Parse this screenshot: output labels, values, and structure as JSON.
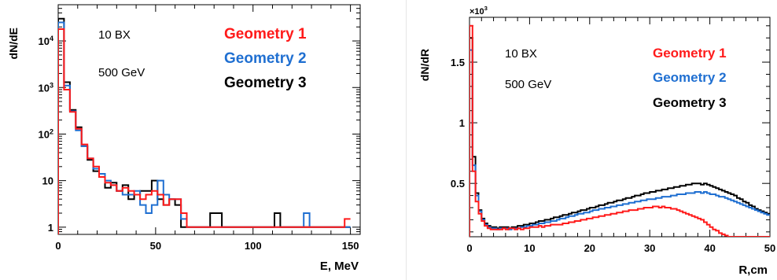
{
  "chart_data": [
    {
      "type": "step",
      "ylabel": "dN/dE",
      "xlabel": "E, MeV",
      "xlim": [
        0,
        155
      ],
      "ylim": [
        0.7,
        60000
      ],
      "yscale": "log",
      "xticks": [
        0,
        50,
        100,
        150
      ],
      "xtick_labels": [
        "0",
        "50",
        "100",
        "150"
      ],
      "yticks": [
        1,
        10,
        100,
        1000,
        10000
      ],
      "ytick_labels": [
        "1",
        "10",
        "10^2",
        "10^3",
        "10^4"
      ],
      "bin_edges": [
        0,
        3,
        6,
        9,
        12,
        15,
        18,
        21,
        24,
        27,
        30,
        33,
        36,
        39,
        42,
        45,
        48,
        51,
        54,
        57,
        60,
        63,
        66,
        69,
        72,
        75,
        78,
        81,
        84,
        87,
        90,
        93,
        96,
        99,
        102,
        105,
        108,
        111,
        114,
        117,
        120,
        123,
        126,
        129,
        132,
        135,
        138,
        141,
        144,
        147,
        150
      ],
      "text": [
        "10 BX",
        "500 GeV"
      ],
      "series": [
        {
          "name": "Geometry 1",
          "color": "#ff1a1a",
          "values": [
            18000,
            900,
            300,
            130,
            60,
            30,
            20,
            12,
            9,
            8,
            6,
            7,
            6,
            5,
            4,
            5,
            6,
            5,
            3,
            4,
            4,
            2,
            1,
            1,
            1,
            1,
            1,
            1,
            1,
            1,
            1,
            1,
            1,
            1,
            1,
            1,
            1,
            1,
            1,
            1,
            1,
            1,
            1,
            1,
            1,
            1,
            1,
            1,
            1,
            1.5
          ]
        },
        {
          "name": "Geometry 2",
          "color": "#1f6fd1",
          "values": [
            25000,
            1100,
            310,
            120,
            55,
            30,
            18,
            14,
            10,
            8,
            6,
            5,
            5,
            6,
            3,
            2,
            3,
            10,
            5,
            4,
            4,
            1.5,
            1,
            1,
            1,
            1,
            1,
            1,
            1,
            1,
            1,
            1,
            1,
            1,
            1,
            1,
            1,
            1,
            1,
            1,
            1,
            1,
            2,
            1,
            1,
            1,
            1,
            1,
            1,
            1
          ]
        },
        {
          "name": "Geometry 3",
          "color": "#000000",
          "values": [
            30000,
            1300,
            330,
            140,
            55,
            28,
            16,
            12,
            7,
            9,
            6,
            8,
            4,
            5,
            6,
            6,
            10,
            4,
            3,
            4,
            3,
            1,
            1,
            1,
            1,
            1,
            2,
            2,
            1,
            1,
            1,
            1,
            1,
            1,
            1,
            1,
            1,
            2,
            1,
            1,
            1,
            1,
            1,
            1,
            1,
            1,
            1,
            1,
            1,
            1
          ]
        }
      ]
    },
    {
      "type": "step",
      "ylabel": "dN/dR",
      "xlabel": "R,cm",
      "y_multiplier": "×10^3",
      "xlim": [
        0,
        50
      ],
      "ylim": [
        0.06,
        1.87
      ],
      "xticks": [
        0,
        10,
        20,
        30,
        40,
        50
      ],
      "xtick_labels": [
        "0",
        "10",
        "20",
        "30",
        "40",
        "50"
      ],
      "yticks": [
        0.5,
        1,
        1.5
      ],
      "ytick_labels": [
        "0.5",
        "1",
        "1.5"
      ],
      "bin_start": 0,
      "bin_width": 0.5,
      "text": [
        "10 BX",
        "500 GeV"
      ],
      "series": [
        {
          "name": "Geometry 1",
          "color": "#ff1a1a",
          "values": [
            1.8,
            0.6,
            0.35,
            0.25,
            0.19,
            0.15,
            0.13,
            0.12,
            0.12,
            0.12,
            0.12,
            0.13,
            0.12,
            0.13,
            0.13,
            0.12,
            0.13,
            0.12,
            0.13,
            0.13,
            0.14,
            0.14,
            0.14,
            0.15,
            0.14,
            0.15,
            0.15,
            0.16,
            0.16,
            0.16,
            0.16,
            0.17,
            0.17,
            0.18,
            0.18,
            0.19,
            0.19,
            0.2,
            0.2,
            0.21,
            0.21,
            0.22,
            0.22,
            0.23,
            0.23,
            0.24,
            0.24,
            0.25,
            0.25,
            0.26,
            0.26,
            0.27,
            0.27,
            0.28,
            0.28,
            0.28,
            0.29,
            0.29,
            0.3,
            0.3,
            0.3,
            0.31,
            0.31,
            0.3,
            0.31,
            0.3,
            0.3,
            0.29,
            0.29,
            0.28,
            0.27,
            0.26,
            0.25,
            0.24,
            0.23,
            0.22,
            0.21,
            0.2,
            0.18,
            0.16,
            0.14,
            0.12,
            0.11,
            0.09,
            0.08,
            0.07,
            0.06,
            0.06,
            0.06,
            0.06,
            0.06,
            0.06,
            0.06,
            0.06,
            0.06,
            0.06,
            0.06,
            0.06,
            0.06,
            0.06
          ]
        },
        {
          "name": "Geometry 2",
          "color": "#1f6fd1",
          "values": [
            1.6,
            0.65,
            0.4,
            0.27,
            0.2,
            0.16,
            0.14,
            0.13,
            0.13,
            0.12,
            0.13,
            0.13,
            0.13,
            0.12,
            0.13,
            0.13,
            0.13,
            0.14,
            0.14,
            0.15,
            0.15,
            0.16,
            0.16,
            0.17,
            0.17,
            0.18,
            0.18,
            0.19,
            0.19,
            0.2,
            0.21,
            0.21,
            0.22,
            0.23,
            0.23,
            0.24,
            0.25,
            0.25,
            0.26,
            0.26,
            0.27,
            0.28,
            0.28,
            0.29,
            0.29,
            0.3,
            0.3,
            0.31,
            0.31,
            0.32,
            0.32,
            0.33,
            0.33,
            0.34,
            0.34,
            0.35,
            0.35,
            0.36,
            0.36,
            0.37,
            0.37,
            0.37,
            0.38,
            0.38,
            0.39,
            0.39,
            0.39,
            0.4,
            0.4,
            0.41,
            0.41,
            0.41,
            0.42,
            0.42,
            0.42,
            0.43,
            0.43,
            0.42,
            0.43,
            0.42,
            0.41,
            0.41,
            0.4,
            0.39,
            0.39,
            0.38,
            0.37,
            0.36,
            0.35,
            0.34,
            0.33,
            0.32,
            0.31,
            0.3,
            0.29,
            0.28,
            0.27,
            0.26,
            0.25,
            0.24
          ]
        },
        {
          "name": "Geometry 3",
          "color": "#000000",
          "values": [
            1.7,
            0.72,
            0.42,
            0.28,
            0.21,
            0.17,
            0.15,
            0.14,
            0.14,
            0.13,
            0.14,
            0.14,
            0.14,
            0.13,
            0.14,
            0.14,
            0.15,
            0.15,
            0.16,
            0.16,
            0.17,
            0.17,
            0.18,
            0.19,
            0.19,
            0.2,
            0.2,
            0.21,
            0.22,
            0.22,
            0.23,
            0.24,
            0.24,
            0.25,
            0.26,
            0.26,
            0.27,
            0.28,
            0.28,
            0.29,
            0.3,
            0.3,
            0.31,
            0.32,
            0.32,
            0.33,
            0.34,
            0.34,
            0.35,
            0.36,
            0.36,
            0.37,
            0.38,
            0.38,
            0.39,
            0.4,
            0.4,
            0.41,
            0.42,
            0.42,
            0.43,
            0.43,
            0.44,
            0.44,
            0.45,
            0.45,
            0.46,
            0.46,
            0.47,
            0.47,
            0.48,
            0.48,
            0.49,
            0.49,
            0.5,
            0.5,
            0.5,
            0.49,
            0.5,
            0.49,
            0.48,
            0.47,
            0.46,
            0.45,
            0.44,
            0.43,
            0.42,
            0.41,
            0.4,
            0.38,
            0.37,
            0.35,
            0.34,
            0.32,
            0.31,
            0.29,
            0.28,
            0.27,
            0.26,
            0.25
          ]
        }
      ]
    }
  ]
}
